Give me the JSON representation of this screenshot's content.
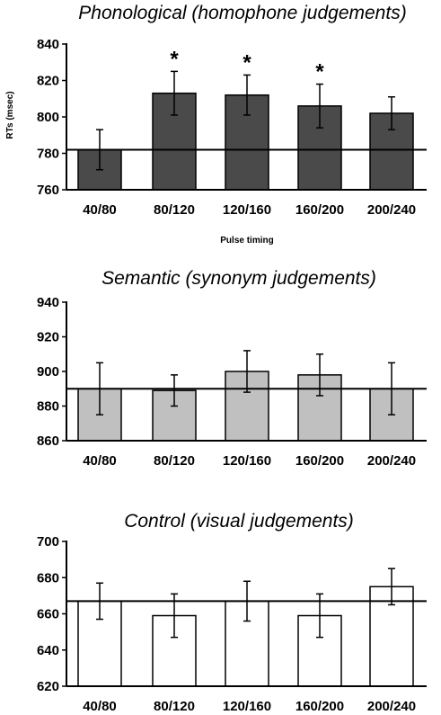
{
  "chart_data": [
    {
      "type": "bar",
      "title": "Phonological (homophone judgements)",
      "xlabel": "Pulse timing",
      "ylabel": "RTs (msec)",
      "ylim": [
        760,
        840
      ],
      "yticks": [
        760,
        780,
        800,
        820,
        840
      ],
      "categories": [
        "40/80",
        "80/120",
        "120/160",
        "160/200",
        "200/240"
      ],
      "values": [
        782,
        813,
        812,
        806,
        802
      ],
      "errors": [
        11,
        12,
        11,
        12,
        9
      ],
      "baseline": 782,
      "significant": [
        false,
        true,
        true,
        true,
        false
      ],
      "significance_marker": "*",
      "bar_color": "#4a4a4a"
    },
    {
      "type": "bar",
      "title": "Semantic (synonym judgements)",
      "xlabel": "",
      "ylabel": "",
      "ylim": [
        860,
        940
      ],
      "yticks": [
        860,
        880,
        900,
        920,
        940
      ],
      "categories": [
        "40/80",
        "80/120",
        "120/160",
        "160/200",
        "200/240"
      ],
      "values": [
        890,
        889,
        900,
        898,
        890
      ],
      "errors": [
        15,
        9,
        12,
        12,
        15
      ],
      "baseline": 890,
      "significant": [
        false,
        false,
        false,
        false,
        false
      ],
      "significance_marker": "*",
      "bar_color": "#c0c0c0"
    },
    {
      "type": "bar",
      "title": "Control (visual judgements)",
      "xlabel": "",
      "ylabel": "",
      "ylim": [
        620,
        700
      ],
      "yticks": [
        620,
        640,
        660,
        680,
        700
      ],
      "categories": [
        "40/80",
        "80/120",
        "120/160",
        "160/200",
        "200/240"
      ],
      "values": [
        667,
        659,
        667,
        659,
        675
      ],
      "errors": [
        10,
        12,
        11,
        12,
        10
      ],
      "baseline": 667,
      "significant": [
        false,
        false,
        false,
        false,
        false
      ],
      "significance_marker": "*",
      "bar_color": "#ffffff"
    }
  ]
}
